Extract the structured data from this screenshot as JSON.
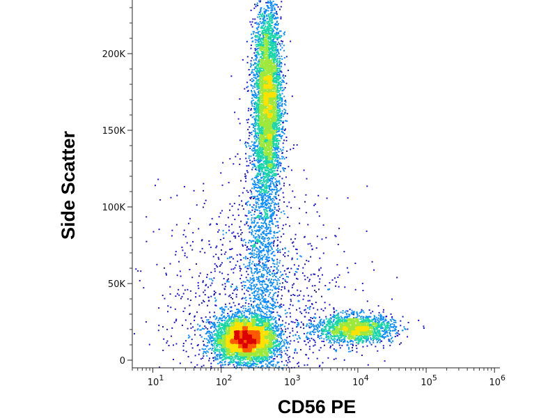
{
  "chart_data": {
    "type": "scatter",
    "title": "",
    "xlabel": "CD56 PE",
    "ylabel": "Side Scatter",
    "x_scale": "log",
    "xlim": [
      5,
      1200000
    ],
    "ylim": [
      -5000,
      235000
    ],
    "x_ticks": [
      {
        "value": 10,
        "base": "10",
        "exp": "1"
      },
      {
        "value": 100,
        "base": "10",
        "exp": "2"
      },
      {
        "value": 1000,
        "base": "10",
        "exp": "3"
      },
      {
        "value": 10000,
        "base": "10",
        "exp": "4"
      },
      {
        "value": 100000,
        "base": "10",
        "exp": "5"
      },
      {
        "value": 1000000,
        "base": "10",
        "exp": "6"
      }
    ],
    "y_ticks": [
      {
        "value": 0,
        "label": "0"
      },
      {
        "value": 50000,
        "label": "50K"
      },
      {
        "value": 100000,
        "label": "100K"
      },
      {
        "value": 150000,
        "label": "150K"
      },
      {
        "value": 200000,
        "label": "200K"
      }
    ],
    "grid": false,
    "legend": "none",
    "density_colormap": [
      "#1a12c8",
      "#0a8cff",
      "#19d6a8",
      "#9de83a",
      "#ffe100",
      "#ff5a00",
      "#dd0000"
    ],
    "populations": [
      {
        "name": "lymphocytes",
        "x_center": 220,
        "y_center": 14000,
        "x_spread_decades": 0.22,
        "y_spread": 7000,
        "weight": 0.34
      },
      {
        "name": "granulocytes",
        "x_center": 470,
        "y_center": 170000,
        "x_spread_decades": 0.1,
        "y_spread": 32000,
        "weight": 0.33
      },
      {
        "name": "cd56-positive",
        "x_center": 9000,
        "y_center": 21000,
        "x_spread_decades": 0.28,
        "y_spread": 4500,
        "weight": 0.13
      },
      {
        "name": "connecting-stream",
        "x_center": 380,
        "y_center": 70000,
        "x_spread_decades": 0.13,
        "y_spread": 55000,
        "weight": 0.1
      },
      {
        "name": "background",
        "x_center": 300,
        "y_center": 30000,
        "x_spread_decades": 0.7,
        "y_spread": 40000,
        "weight": 0.1
      }
    ]
  }
}
